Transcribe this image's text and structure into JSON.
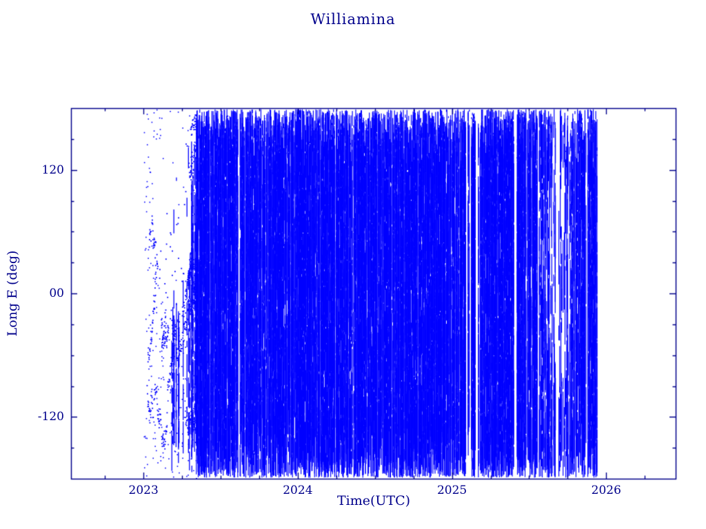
{
  "chart_data": {
    "type": "scatter",
    "title": "Williamina",
    "xlabel": "Time(UTC)",
    "ylabel": "Long E (deg)",
    "x_range": [
      2022.53,
      2026.45
    ],
    "y_range": [
      -180,
      180
    ],
    "x_ticks": [
      {
        "value": 2023,
        "label": "2023"
      },
      {
        "value": 2024,
        "label": "2024"
      },
      {
        "value": 2025,
        "label": "2025"
      },
      {
        "value": 2026,
        "label": "2026"
      }
    ],
    "y_ticks": [
      {
        "value": 120,
        "label": "120"
      },
      {
        "value": 0,
        "label": "00"
      },
      {
        "value": -120,
        "label": "-120"
      }
    ],
    "marker": "small-square",
    "color": "#0101ff",
    "axis_color": "#00008b",
    "grid": false,
    "legend": "none",
    "series_description": "East longitude coverage vs time; longitude wraps between -180 and 180 so rapidly that samples form dense vertical traces filling the panel from early 2023 through late 2025, with a sparse scattered-track interval at the start of 2023 and thinner coverage around mid/late 2025",
    "coverage_segments": [
      {
        "start": 2023.0,
        "end": 2023.34,
        "style": "tracks",
        "density": 0.3,
        "gap_scale": 1
      },
      {
        "start": 2023.34,
        "end": 2025.55,
        "style": "lines",
        "density": 0.93,
        "gap_scale": 1
      },
      {
        "start": 2025.55,
        "end": 2025.8,
        "style": "lines",
        "density": 0.6,
        "gap_scale": 2.4
      },
      {
        "start": 2025.8,
        "end": 2025.94,
        "style": "lines",
        "density": 0.88,
        "gap_scale": 1.2
      }
    ],
    "voids": [
      {
        "t": 2023.19,
        "lon": 75,
        "rt": 0.115,
        "rlon": 100,
        "p": 0.93
      },
      {
        "t": 2025.68,
        "lon": 30,
        "rt": 0.09,
        "rlon": 110,
        "p": 0.55
      }
    ]
  }
}
